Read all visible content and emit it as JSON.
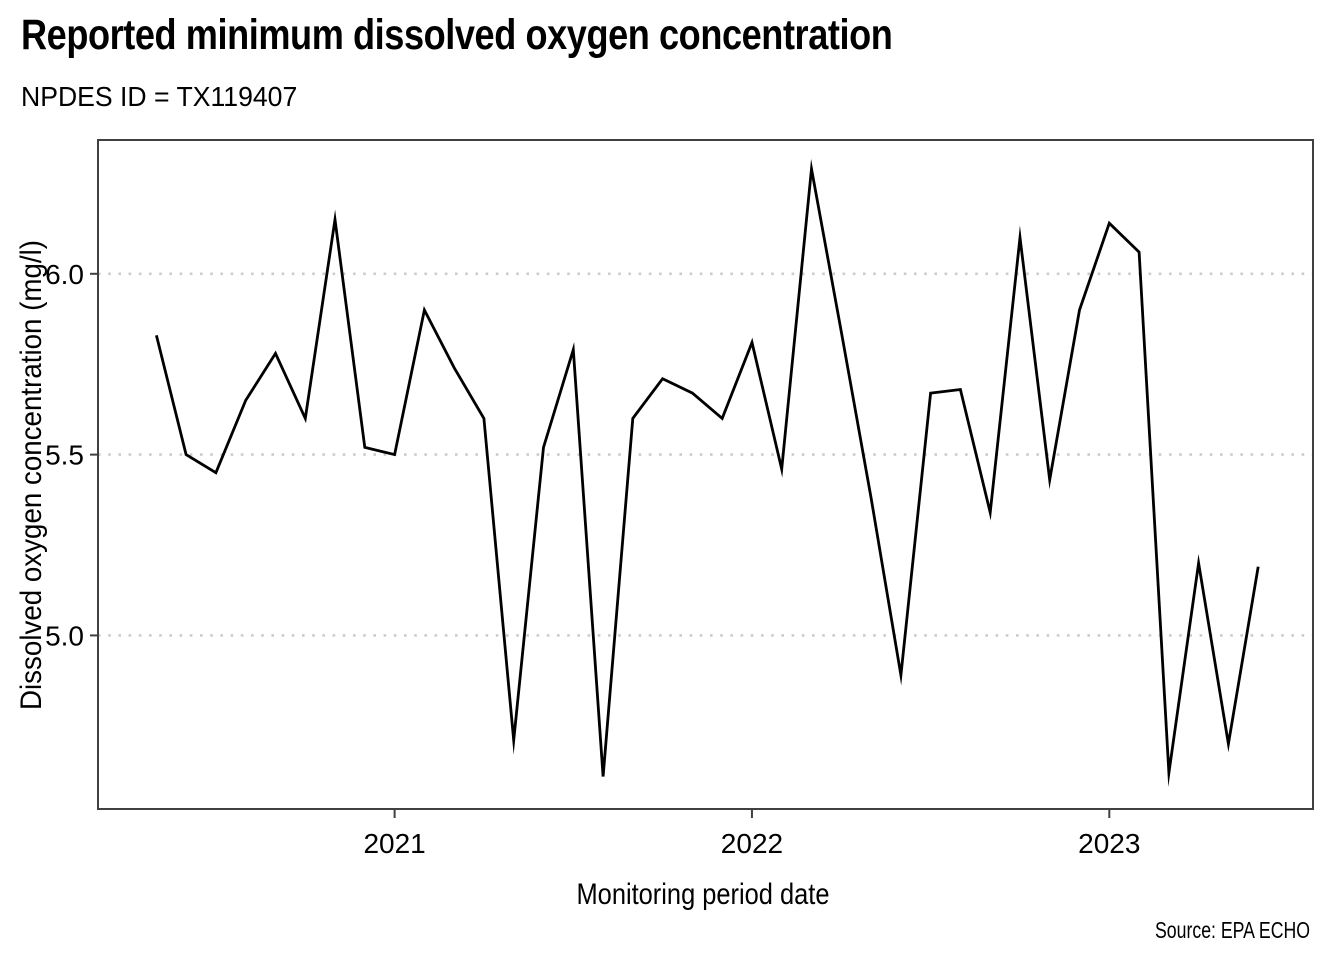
{
  "header": {
    "title": "Reported minimum dissolved oxygen concentration",
    "subtitle": "NPDES ID = TX119407"
  },
  "chart_data": {
    "type": "line",
    "title": "Reported minimum dissolved oxygen concentration",
    "subtitle": "NPDES ID = TX119407",
    "xlabel": "Monitoring period date",
    "ylabel": "Dissolved oxygen concentration (mg/l)",
    "caption": "Source: EPA ECHO",
    "x": [
      "2020-05",
      "2020-06",
      "2020-07",
      "2020-08",
      "2020-09",
      "2020-10",
      "2020-11",
      "2020-12",
      "2021-01",
      "2021-02",
      "2021-03",
      "2021-04",
      "2021-05",
      "2021-06",
      "2021-07",
      "2021-08",
      "2021-09",
      "2021-10",
      "2021-11",
      "2021-12",
      "2022-01",
      "2022-02",
      "2022-03",
      "2022-04",
      "2022-05",
      "2022-06",
      "2022-07",
      "2022-08",
      "2022-09",
      "2022-10",
      "2022-11",
      "2022-12",
      "2023-01",
      "2023-02",
      "2023-03",
      "2023-04",
      "2023-05",
      "2023-06"
    ],
    "y": [
      5.83,
      5.5,
      5.45,
      5.65,
      5.78,
      5.6,
      6.15,
      5.52,
      5.5,
      5.9,
      5.74,
      5.6,
      4.71,
      5.52,
      5.79,
      4.61,
      5.6,
      5.71,
      5.67,
      5.6,
      5.81,
      5.46,
      6.29,
      5.84,
      5.38,
      4.89,
      5.67,
      5.68,
      5.34,
      6.1,
      5.43,
      5.9,
      6.14,
      6.06,
      4.62,
      5.2,
      4.7,
      5.19
    ],
    "xticks": [
      2021,
      2022,
      2023
    ],
    "yticks": [
      5.0,
      5.5,
      6.0
    ],
    "ylim": [
      4.52,
      6.37
    ],
    "xlim_decimal_years": [
      2020.17,
      2023.57
    ],
    "grid": "horizontal-dotted",
    "legend": "none",
    "line_color": "#000000"
  },
  "style": {
    "grid_color": "#cccccc",
    "border_color": "#404040",
    "text_color": "#000000",
    "background": "#ffffff"
  }
}
